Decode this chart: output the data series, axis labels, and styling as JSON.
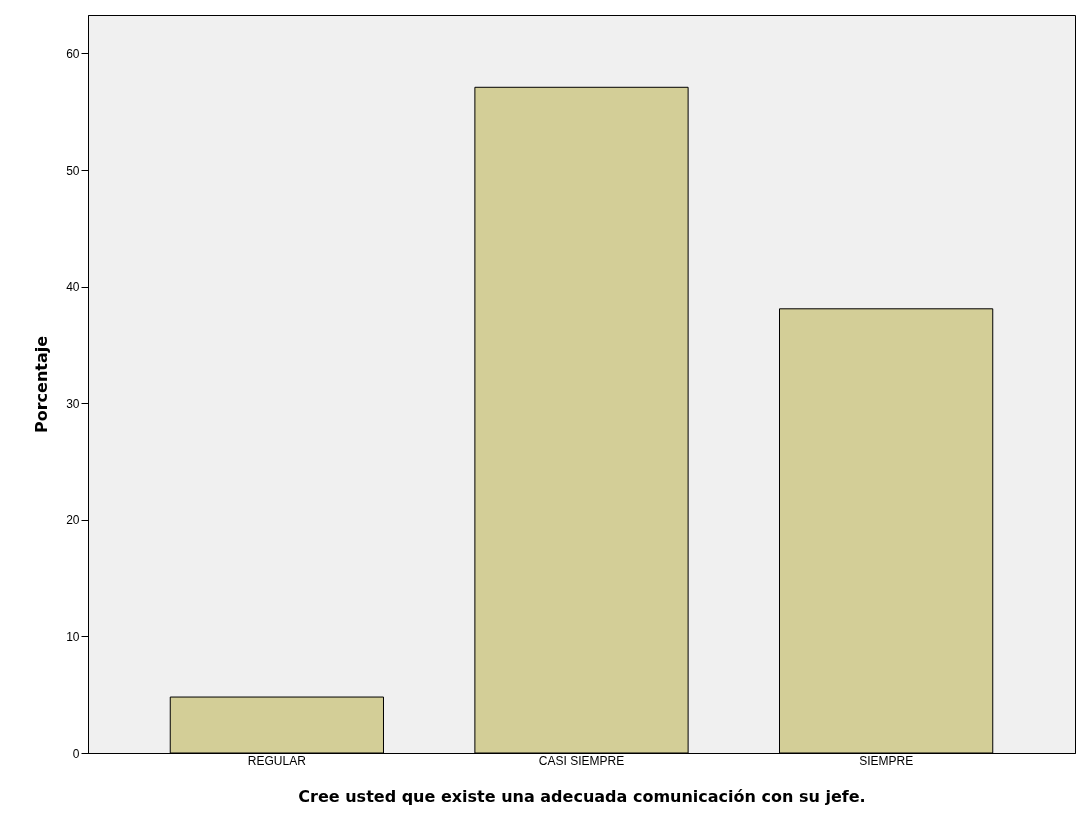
{
  "chart_data": {
    "type": "bar",
    "xlabel": "Cree usted que existe una adecuada comunicación con su jefe.",
    "ylabel": "Porcentaje",
    "categories": [
      "REGULAR",
      "CASI SIEMPRE",
      "SIEMPRE"
    ],
    "values": [
      4.8,
      57.1,
      38.1
    ],
    "color": "#d3ce97",
    "ylim": [
      0,
      63.3
    ],
    "yticks": [
      0,
      10,
      20,
      30,
      40,
      50,
      60
    ],
    "grid": false
  }
}
